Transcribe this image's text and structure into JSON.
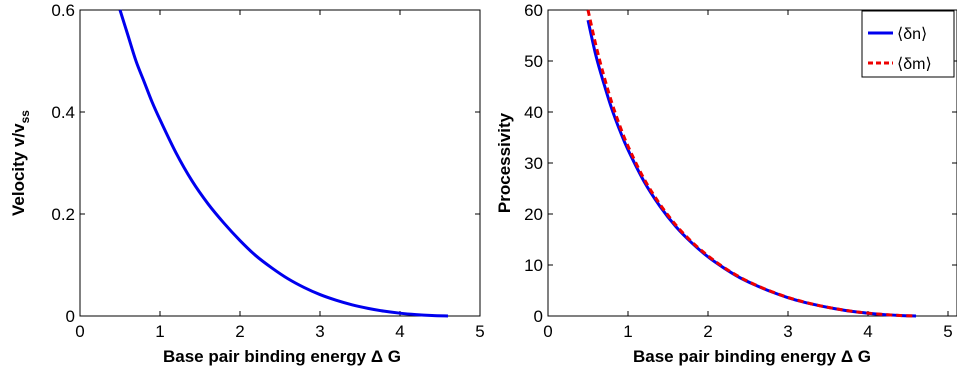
{
  "chart_data": [
    {
      "type": "line",
      "xlabel": "Base pair binding energy Δ G",
      "ylabel": "Velocity v/v",
      "ylabel_sub": "ss",
      "xlim": [
        0,
        5
      ],
      "ylim": [
        0,
        0.6
      ],
      "xticks": [
        "0",
        "1",
        "2",
        "3",
        "4",
        "5"
      ],
      "yticks": [
        "0",
        "0.2",
        "0.4",
        "0.6"
      ],
      "grid": false,
      "series": [
        {
          "color": "#0000ee",
          "style": "solid",
          "x": [
            0.5,
            0.6,
            0.7,
            0.8,
            0.9,
            1.0,
            1.2,
            1.4,
            1.6,
            1.8,
            2.0,
            2.2,
            2.4,
            2.6,
            2.8,
            3.0,
            3.2,
            3.4,
            3.6,
            3.8,
            4.0,
            4.2,
            4.4,
            4.6
          ],
          "y": [
            0.6,
            0.55,
            0.5,
            0.46,
            0.42,
            0.385,
            0.32,
            0.265,
            0.22,
            0.182,
            0.148,
            0.118,
            0.094,
            0.073,
            0.056,
            0.042,
            0.031,
            0.022,
            0.015,
            0.0095,
            0.0055,
            0.0028,
            0.001,
            0.0
          ]
        }
      ]
    },
    {
      "type": "line",
      "xlabel": "Base pair binding energy Δ G",
      "ylabel": "Processivity",
      "xlim": [
        0,
        5
      ],
      "ylim": [
        0,
        60
      ],
      "xticks": [
        "0",
        "1",
        "2",
        "3",
        "4",
        "5"
      ],
      "yticks": [
        "0",
        "10",
        "20",
        "30",
        "40",
        "50",
        "60"
      ],
      "grid": false,
      "legend_position": "top-right",
      "series": [
        {
          "name": "⟨δn⟩",
          "color": "#0000ee",
          "style": "solid",
          "x": [
            0.5,
            0.6,
            0.7,
            0.8,
            0.9,
            1.0,
            1.2,
            1.4,
            1.6,
            1.8,
            2.0,
            2.2,
            2.4,
            2.6,
            2.8,
            3.0,
            3.2,
            3.4,
            3.6,
            3.8,
            4.0,
            4.2,
            4.4,
            4.6
          ],
          "y": [
            58,
            51,
            45.5,
            40.5,
            36.3,
            32.6,
            26.4,
            21.5,
            17.5,
            14.3,
            11.6,
            9.4,
            7.5,
            6.0,
            4.7,
            3.6,
            2.7,
            2.0,
            1.4,
            0.9,
            0.55,
            0.28,
            0.1,
            0.0
          ]
        },
        {
          "name": "⟨δm⟩",
          "color": "#ee0000",
          "style": "dashed",
          "x": [
            0.5,
            0.6,
            0.7,
            0.8,
            0.9,
            1.0,
            1.2,
            1.4,
            1.6,
            1.8,
            2.0,
            2.2,
            2.4,
            2.6,
            2.8,
            3.0,
            3.2,
            3.4,
            3.6,
            3.8,
            4.0,
            4.2,
            4.4,
            4.6
          ],
          "y": [
            61,
            53,
            47,
            41.7,
            37.2,
            33.3,
            26.9,
            21.9,
            17.8,
            14.5,
            11.8,
            9.5,
            7.6,
            6.05,
            4.75,
            3.65,
            2.75,
            2.0,
            1.42,
            0.92,
            0.56,
            0.29,
            0.1,
            0.0
          ]
        }
      ]
    }
  ]
}
